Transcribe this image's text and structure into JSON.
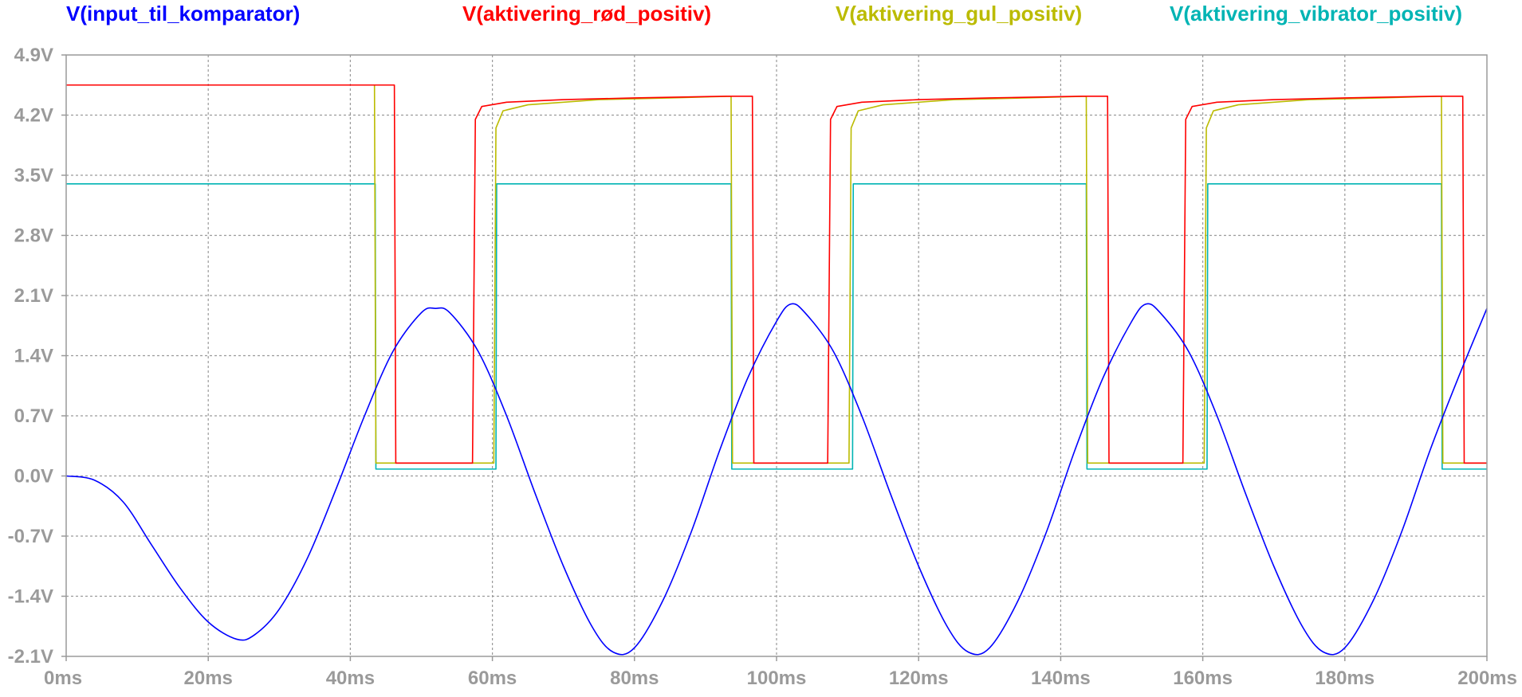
{
  "chart_data": {
    "type": "line",
    "xlabel": "",
    "ylabel": "",
    "xlim": [
      0,
      200
    ],
    "ylim": [
      -2.1,
      4.9
    ],
    "grid": true,
    "legend_position": "top",
    "x_ticks": [
      "0ms",
      "20ms",
      "40ms",
      "60ms",
      "80ms",
      "100ms",
      "120ms",
      "140ms",
      "160ms",
      "180ms",
      "200ms"
    ],
    "y_ticks": [
      "4.9V",
      "4.2V",
      "3.5V",
      "2.8V",
      "2.1V",
      "1.4V",
      "0.7V",
      "0.0V",
      "-0.7V",
      "-1.4V",
      "-2.1V"
    ],
    "series": [
      {
        "name": "V(input_til_komparator)",
        "color": "#0000ff",
        "x": [
          0,
          4,
          8,
          12,
          16,
          20,
          24,
          26.5,
          30,
          34,
          38,
          42,
          46,
          50,
          52,
          54,
          58,
          62,
          66,
          70,
          74,
          77,
          80,
          84,
          88,
          92,
          96,
          100,
          102,
          104,
          108,
          112,
          116,
          120,
          124,
          127,
          130,
          134,
          138,
          142,
          146,
          150,
          152,
          154,
          158,
          162,
          166,
          170,
          174,
          177,
          180,
          184,
          188,
          192,
          196,
          200
        ],
        "y": [
          0,
          -0.05,
          -0.3,
          -0.8,
          -1.3,
          -1.7,
          -1.9,
          -1.85,
          -1.55,
          -0.95,
          -0.15,
          0.7,
          1.45,
          1.9,
          1.95,
          1.9,
          1.45,
          0.7,
          -0.2,
          -1.05,
          -1.75,
          -2.05,
          -2.0,
          -1.45,
          -0.65,
          0.3,
          1.15,
          1.8,
          2.0,
          1.9,
          1.45,
          0.7,
          -0.2,
          -1.05,
          -1.75,
          -2.05,
          -2.0,
          -1.45,
          -0.65,
          0.3,
          1.15,
          1.8,
          2.0,
          1.9,
          1.45,
          0.7,
          -0.2,
          -1.05,
          -1.75,
          -2.05,
          -2.0,
          -1.45,
          -0.65,
          0.3,
          1.15,
          1.95
        ]
      },
      {
        "name": "V(aktivering_rød_positiv)",
        "color": "#ff0000",
        "x": [
          0,
          46.2,
          46.4,
          57.2,
          57.6,
          58.5,
          62,
          70,
          80,
          93,
          96.6,
          96.8,
          107.2,
          107.6,
          108.5,
          112,
          120,
          130,
          143,
          146.6,
          146.8,
          157.2,
          157.6,
          158.5,
          162,
          170,
          180,
          193,
          196.6,
          196.8,
          200
        ],
        "y": [
          4.55,
          4.55,
          0.15,
          0.15,
          4.15,
          4.3,
          4.35,
          4.38,
          4.4,
          4.42,
          4.42,
          0.15,
          0.15,
          4.15,
          4.3,
          4.35,
          4.38,
          4.4,
          4.42,
          4.42,
          0.15,
          0.15,
          4.15,
          4.3,
          4.35,
          4.38,
          4.4,
          4.42,
          4.42,
          0.15,
          0.15
        ]
      },
      {
        "name": "V(aktivering_gul_positiv)",
        "color": "#bbbb00",
        "x": [
          0,
          43.4,
          43.6,
          60.2,
          60.5,
          61.5,
          65,
          75,
          85,
          93.6,
          93.8,
          110.2,
          110.5,
          111.5,
          115,
          125,
          135,
          143.6,
          143.8,
          160.2,
          160.5,
          161.5,
          165,
          175,
          185,
          193.6,
          193.8,
          200
        ],
        "y": [
          4.55,
          4.55,
          0.15,
          0.15,
          4.05,
          4.25,
          4.32,
          4.38,
          4.4,
          4.42,
          0.15,
          0.15,
          4.05,
          4.25,
          4.32,
          4.38,
          4.4,
          4.42,
          0.15,
          0.15,
          4.05,
          4.25,
          4.32,
          4.38,
          4.4,
          4.42,
          0.15,
          0.15
        ]
      },
      {
        "name": "V(aktivering_vibrator_positiv)",
        "color": "#00b4b4",
        "x": [
          0,
          43.5,
          43.6,
          60.5,
          60.6,
          93.6,
          93.7,
          110.7,
          110.8,
          143.6,
          143.7,
          160.6,
          160.7,
          193.6,
          193.7,
          200
        ],
        "y": [
          3.4,
          3.4,
          0.08,
          0.08,
          3.4,
          3.4,
          0.08,
          0.08,
          3.4,
          3.4,
          0.08,
          0.08,
          3.4,
          3.4,
          0.08,
          0.08
        ]
      }
    ]
  }
}
